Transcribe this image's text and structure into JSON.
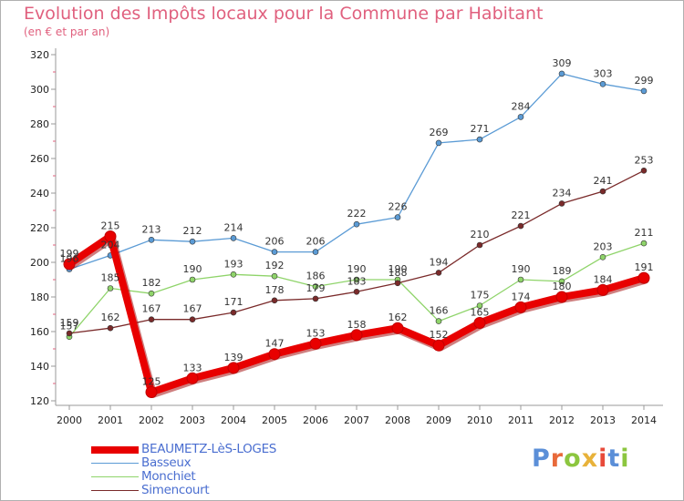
{
  "header": {
    "title": "Evolution des Impôts locaux pour la Commune par Habitant",
    "subtitle": "(en € et par an)"
  },
  "logo": {
    "letters": [
      "P",
      "r",
      "o",
      "x",
      "i",
      "t",
      "i"
    ],
    "colors": [
      "#5b8fd8",
      "#e86a3a",
      "#8cc63f",
      "#e8b23a",
      "#e84a3a",
      "#5b8fd8",
      "#8cc63f"
    ]
  },
  "chart_data": {
    "type": "line",
    "title": "Evolution des Impôts locaux pour la Commune par Habitant",
    "subtitle": "(en € et par an)",
    "x": [
      2000,
      2001,
      2002,
      2003,
      2004,
      2005,
      2006,
      2007,
      2008,
      2009,
      2010,
      2011,
      2012,
      2013,
      2014
    ],
    "ylim": [
      120,
      320
    ],
    "yticks": [
      120,
      140,
      160,
      180,
      200,
      220,
      240,
      260,
      280,
      300,
      320
    ],
    "grid": false,
    "legend_position": "bottom-left",
    "series": [
      {
        "name": "BEAUMETZ-LèS-LOGES",
        "color": "#e80000",
        "values": [
          199,
          215,
          125,
          133,
          139,
          147,
          153,
          158,
          162,
          152,
          165,
          174,
          180,
          184,
          191
        ],
        "labels": [
          "199",
          "215",
          "125",
          "133",
          "139",
          "147",
          "153",
          "158",
          "162",
          "152",
          "165",
          "174",
          "180",
          "184",
          "191"
        ]
      },
      {
        "name": "Basseux",
        "color": "#5b9bd5",
        "values": [
          196,
          204,
          213,
          212,
          214,
          206,
          206,
          222,
          226,
          269,
          271,
          284,
          309,
          303,
          299
        ],
        "labels": [
          "196",
          "204",
          "213",
          "212",
          "214",
          "206",
          "206",
          "222",
          "226",
          "269",
          "271",
          "284",
          "309",
          "303",
          "299"
        ]
      },
      {
        "name": "Monchiet",
        "color": "#8fd46a",
        "values": [
          157,
          185,
          182,
          190,
          193,
          192,
          186,
          190,
          190,
          166,
          175,
          190,
          189,
          203,
          211
        ],
        "labels": [
          "157",
          "185",
          "182",
          "190",
          "193",
          "192",
          "186",
          "190",
          "190",
          "166",
          "175",
          "190",
          "189",
          "203",
          "211"
        ]
      },
      {
        "name": "Simencourt",
        "color": "#7a2a2a",
        "values": [
          159,
          162,
          167,
          167,
          171,
          178,
          179,
          183,
          188,
          194,
          210,
          221,
          234,
          241,
          253
        ],
        "labels": [
          "159",
          "162",
          "167",
          "167",
          "171",
          "178",
          "179",
          "183",
          "188",
          "194",
          "210",
          "221",
          "234",
          "241",
          "253"
        ]
      }
    ]
  }
}
